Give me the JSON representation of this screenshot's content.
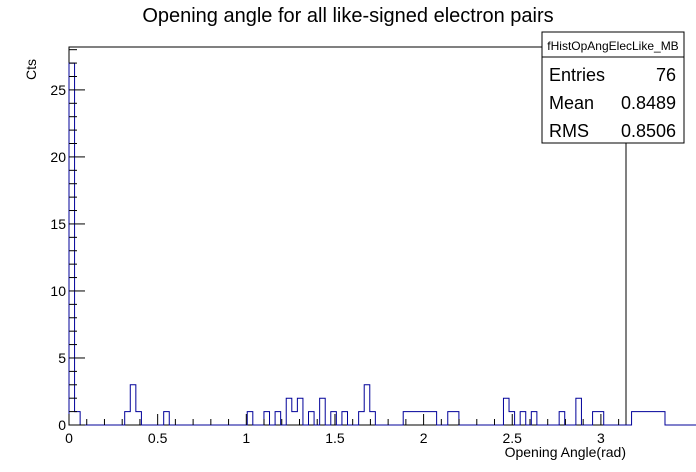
{
  "chart_data": {
    "type": "bar",
    "title": "Opening angle for all like-signed electron pairs",
    "xlabel": "Opening Angle(rad)",
    "ylabel": "Cts",
    "xlim": [
      0,
      3.1416
    ],
    "ylim": [
      0,
      28.2
    ],
    "bin_width": 0.0314159,
    "x_ticks": [
      {
        "value": 0,
        "label": "0"
      },
      {
        "value": 0.5,
        "label": "0.5"
      },
      {
        "value": 1,
        "label": "1"
      },
      {
        "value": 1.5,
        "label": "1.5"
      },
      {
        "value": 2,
        "label": "2"
      },
      {
        "value": 2.5,
        "label": "2.5"
      },
      {
        "value": 3,
        "label": "3"
      }
    ],
    "y_ticks": [
      {
        "value": 0,
        "label": "0"
      },
      {
        "value": 5,
        "label": "5"
      },
      {
        "value": 10,
        "label": "10"
      },
      {
        "value": 15,
        "label": "15"
      },
      {
        "value": 20,
        "label": "20"
      },
      {
        "value": 25,
        "label": "25"
      }
    ],
    "series": [
      {
        "color": "#000099",
        "values": [
          27,
          1,
          0,
          0,
          0,
          0,
          0,
          0,
          0,
          0,
          1,
          3,
          1,
          0,
          0,
          0,
          0,
          1,
          0,
          0,
          0,
          0,
          0,
          0,
          0,
          0,
          0,
          0,
          0,
          0,
          0,
          0,
          1,
          0,
          0,
          1,
          0,
          1,
          0,
          2,
          1,
          2,
          0,
          1,
          0,
          2,
          0,
          1,
          0,
          1,
          0,
          0,
          1,
          3,
          1,
          0,
          0,
          0,
          0,
          0,
          1,
          1,
          1,
          1,
          1,
          1,
          0,
          0,
          1,
          1,
          0,
          0,
          0,
          0,
          0,
          0,
          0,
          0,
          2,
          1,
          0,
          1,
          0,
          1,
          0,
          0,
          0,
          0,
          1,
          0,
          0,
          2,
          0,
          0,
          1,
          1,
          0,
          0,
          0,
          0,
          0,
          1,
          1,
          1,
          1,
          1,
          1,
          0,
          0,
          0,
          0,
          0,
          0,
          0,
          0,
          0,
          0,
          0,
          0,
          0,
          0,
          0,
          0,
          0,
          0,
          0,
          0,
          0,
          0,
          0,
          0,
          0,
          0,
          0,
          0,
          0,
          0,
          0,
          0,
          0,
          0,
          0,
          0,
          0,
          0,
          0,
          0,
          0,
          0,
          0,
          0,
          0,
          0,
          0,
          0,
          0,
          0,
          0,
          0,
          0,
          0,
          0,
          0,
          0,
          0,
          0,
          0,
          0,
          0,
          0,
          0,
          0,
          0,
          0,
          0,
          0,
          0,
          0,
          0,
          0,
          0,
          0,
          0,
          0,
          0,
          0,
          0,
          0,
          0,
          0
        ]
      }
    ],
    "legend": "top-right",
    "grid": false
  },
  "stats_box": {
    "name": "fHistOpAngElecLike_MB",
    "rows": [
      {
        "label": "Entries",
        "value": "76"
      },
      {
        "label": "Mean",
        "value": "0.8489"
      },
      {
        "label": "RMS",
        "value": "0.8506"
      }
    ]
  }
}
